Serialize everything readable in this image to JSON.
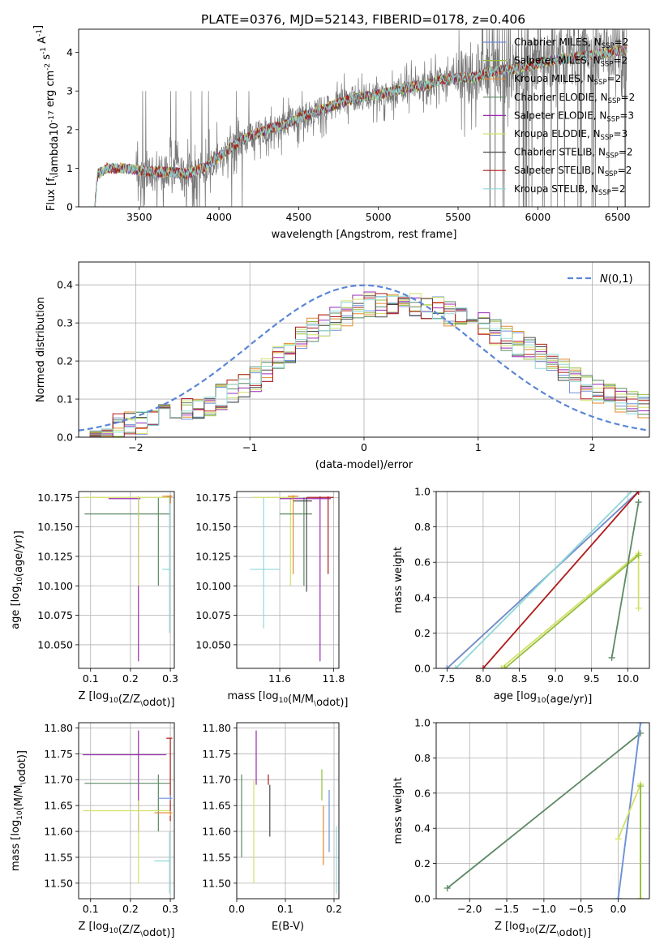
{
  "figure": {
    "title": "PLATE=0376, MJD=52143, FIBERID=0178, z=0.406"
  },
  "colors": {
    "Chabrier MILES": "#6f8fd6",
    "Salpeter MILES": "#93be3a",
    "Kroupa MILES": "#e08a2e",
    "Chabrier ELODIE": "#5c8a64",
    "Salpeter ELODIE": "#9a2ab3",
    "Kroupa ELODIE": "#d4e06a",
    "Chabrier STELIB": "#4a4a4a",
    "Salpeter STELIB": "#b01a1a",
    "Kroupa STELIB": "#8fd8d8",
    "normal": "#5a86d6",
    "data": "#777777"
  },
  "chart_data": [
    {
      "id": "spectrum",
      "type": "line",
      "xlabel": "wavelength [Angstrom, rest frame]",
      "ylabel": "Flux [f$_\\lambda$10$^{-17}$ erg cm$^{-2}$ s$^{-1}$ A$^{-1}$]",
      "xlim": [
        3120,
        6700
      ],
      "ylim": [
        0,
        4.6
      ],
      "xticks": [
        3500,
        4000,
        4500,
        5000,
        5500,
        6000,
        6500
      ],
      "yticks": [
        0,
        1,
        2,
        3,
        4
      ],
      "grid": false,
      "legend": "top-right",
      "legend_entries": [
        {
          "name": "Chabrier MILES",
          "nssp": 2
        },
        {
          "name": "Salpeter MILES",
          "nssp": 2
        },
        {
          "name": "Kroupa MILES",
          "nssp": 2
        },
        {
          "name": "Chabrier ELODIE",
          "nssp": 2
        },
        {
          "name": "Salpeter ELODIE",
          "nssp": 3
        },
        {
          "name": "Kroupa ELODIE",
          "nssp": 3
        },
        {
          "name": "Chabrier STELIB",
          "nssp": 2
        },
        {
          "name": "Salpeter STELIB",
          "nssp": 2
        },
        {
          "name": "Kroupa STELIB",
          "nssp": 2
        }
      ],
      "continuum": {
        "x": [
          3220,
          3240,
          3300,
          3400,
          3500,
          3600,
          3700,
          3800,
          3900,
          4000,
          4100,
          4200,
          4300,
          4400,
          4500,
          4600,
          4700,
          4800,
          4900,
          5000,
          5100,
          5200,
          5300,
          5400,
          5500,
          5600,
          5700,
          5800,
          5900,
          6000,
          6100,
          6200,
          6300,
          6400,
          6500,
          6550
        ],
        "y": [
          0.0,
          0.85,
          1.0,
          1.0,
          0.95,
          0.9,
          0.9,
          0.85,
          1.0,
          1.3,
          1.6,
          1.85,
          2.0,
          2.1,
          2.3,
          2.45,
          2.6,
          2.75,
          2.85,
          2.9,
          3.0,
          3.1,
          3.15,
          3.3,
          3.35,
          3.35,
          3.5,
          3.55,
          3.6,
          3.7,
          3.8,
          3.85,
          3.9,
          3.95,
          4.05,
          4.05
        ]
      }
    },
    {
      "id": "residuals",
      "type": "line",
      "xlabel": "(data-model)/error",
      "ylabel": "Normed distribution",
      "xlim": [
        -2.5,
        2.5
      ],
      "ylim": [
        0,
        0.46
      ],
      "xticks": [
        -2,
        -1,
        0,
        1,
        2
      ],
      "yticks": [
        0.0,
        0.1,
        0.2,
        0.3,
        0.4
      ],
      "grid": true,
      "legend": "top-right",
      "normal_label": "$\\mathcal{N}(0,1)$",
      "hist_envelope": {
        "x": [
          -2.5,
          -2.0,
          -1.5,
          -1.0,
          -0.5,
          0.0,
          0.5,
          1.0,
          1.5,
          2.0,
          2.5
        ],
        "y": [
          0.02,
          0.035,
          0.07,
          0.14,
          0.27,
          0.35,
          0.35,
          0.3,
          0.22,
          0.12,
          0.08
        ]
      }
    },
    {
      "id": "age-vs-Z",
      "type": "scatter",
      "xlabel": "Z [log$_{10}$(Z/Z$_\\odot$)]",
      "ylabel": "age  [log$_{10}$(age/yr)]",
      "xlim": [
        0.07,
        0.31
      ],
      "ylim": [
        10.03,
        10.18
      ],
      "xticks": [
        0.1,
        0.2,
        0.3
      ],
      "yticks": [
        10.05,
        10.075,
        10.1,
        10.125,
        10.15,
        10.175
      ],
      "grid": true,
      "crosses": [
        {
          "series": "Salpeter ELODIE",
          "x": 0.22,
          "y": 10.174,
          "xerr": [
            0.145,
            0.225
          ],
          "yerr": [
            10.036,
            10.176
          ]
        },
        {
          "series": "Chabrier ELODIE",
          "x": 0.27,
          "y": 10.161,
          "xerr": [
            0.085,
            0.3
          ],
          "yerr": [
            10.1,
            10.175
          ]
        },
        {
          "series": "Kroupa ELODIE",
          "x": 0.22,
          "y": 10.175,
          "xerr": [
            0.08,
            0.298
          ],
          "yerr": [
            10.1,
            10.176
          ]
        },
        {
          "series": "Kroupa STELIB",
          "x": 0.298,
          "y": 10.114,
          "xerr": [
            0.28,
            0.3
          ],
          "yerr": [
            10.06,
            10.176
          ]
        },
        {
          "series": "Salpeter STELIB",
          "x": 0.3,
          "y": 10.176,
          "xerr": [
            0.29,
            0.305
          ],
          "yerr": [
            10.17,
            10.177
          ]
        },
        {
          "series": "Kroupa MILES",
          "x": 0.3,
          "y": 10.176,
          "xerr": [
            0.28,
            0.305
          ],
          "yerr": [
            10.17,
            10.177
          ]
        }
      ]
    },
    {
      "id": "age-vs-mass",
      "type": "scatter",
      "xlabel": "mass [log$_{10}$(M/M$_\\odot$)]",
      "ylabel": "",
      "xlim": [
        11.44,
        11.82
      ],
      "ylim": [
        10.03,
        10.18
      ],
      "xticks": [
        11.6,
        11.8
      ],
      "yticks": [
        10.05,
        10.075,
        10.1,
        10.125,
        10.15,
        10.175
      ],
      "grid": true,
      "crosses": [
        {
          "series": "Kroupa STELIB",
          "x": 11.54,
          "y": 10.114,
          "xerr": [
            11.49,
            11.6
          ],
          "yerr": [
            10.064,
            10.175
          ]
        },
        {
          "series": "Kroupa ELODIE",
          "x": 11.64,
          "y": 10.175,
          "xerr": [
            11.5,
            11.66
          ],
          "yerr": [
            10.1,
            10.176
          ]
        },
        {
          "series": "Chabrier ELODIE",
          "x": 11.69,
          "y": 10.161,
          "xerr": [
            11.6,
            11.72
          ],
          "yerr": [
            10.1,
            10.175
          ]
        },
        {
          "series": "Salpeter ELODIE",
          "x": 11.75,
          "y": 10.174,
          "xerr": [
            11.6,
            11.79
          ],
          "yerr": [
            10.036,
            10.176
          ]
        },
        {
          "series": "Salpeter STELIB",
          "x": 11.78,
          "y": 10.175,
          "xerr": [
            11.7,
            11.8
          ],
          "yerr": [
            10.11,
            10.176
          ]
        },
        {
          "series": "Chabrier STELIB",
          "x": 11.7,
          "y": 10.172,
          "xerr": [
            11.65,
            11.72
          ],
          "yerr": [
            10.095,
            10.175
          ]
        },
        {
          "series": "Kroupa MILES",
          "x": 11.65,
          "y": 10.176,
          "xerr": [
            11.63,
            11.67
          ],
          "yerr": [
            10.11,
            10.177
          ]
        }
      ]
    },
    {
      "id": "massweight-vs-age",
      "type": "line",
      "xlabel": "age  [log$_{10}$(age/yr)]",
      "ylabel": "mass weight",
      "xlim": [
        7.35,
        10.3
      ],
      "ylim": [
        0,
        1.0
      ],
      "xticks": [
        7.5,
        8.0,
        8.5,
        9.0,
        9.5,
        10.0
      ],
      "yticks": [
        0.0,
        0.2,
        0.4,
        0.6,
        0.8,
        1.0
      ],
      "grid": true,
      "series": [
        {
          "name": "Kroupa MILES",
          "x": [
            7.5,
            10.15
          ],
          "y": [
            0.0,
            1.0
          ]
        },
        {
          "name": "Chabrier MILES",
          "x": [
            7.5,
            10.15
          ],
          "y": [
            0.0,
            1.0
          ]
        },
        {
          "name": "Kroupa STELIB",
          "x": [
            7.62,
            10.15
          ],
          "y": [
            0.0,
            1.04
          ]
        },
        {
          "name": "Salpeter STELIB",
          "x": [
            8.0,
            10.15
          ],
          "y": [
            0.0,
            1.0
          ]
        },
        {
          "name": "Kroupa ELODIE",
          "x": [
            8.25,
            10.15,
            10.15
          ],
          "y": [
            0.0,
            0.65,
            0.34
          ]
        },
        {
          "name": "Salpeter MILES",
          "x": [
            8.3,
            10.15
          ],
          "y": [
            0.0,
            0.64
          ]
        },
        {
          "name": "Chabrier ELODIE",
          "x": [
            9.78,
            10.15
          ],
          "y": [
            0.06,
            0.94
          ]
        }
      ]
    },
    {
      "id": "mass-vs-Z",
      "type": "scatter",
      "xlabel": "Z [log$_{10}$(Z/Z$_\\odot$)]",
      "ylabel": "mass [log$_{10}$(M/M$_\\odot$)]",
      "xlim": [
        0.07,
        0.31
      ],
      "ylim": [
        11.47,
        11.81
      ],
      "xticks": [
        0.1,
        0.2,
        0.3
      ],
      "yticks": [
        11.5,
        11.55,
        11.6,
        11.65,
        11.7,
        11.75,
        11.8
      ],
      "grid": true,
      "crosses": [
        {
          "series": "Salpeter ELODIE",
          "x": 0.22,
          "y": 11.748,
          "xerr": [
            0.08,
            0.29
          ],
          "yerr": [
            11.6,
            11.795
          ]
        },
        {
          "series": "Chabrier ELODIE",
          "x": 0.27,
          "y": 11.693,
          "xerr": [
            0.085,
            0.3
          ],
          "yerr": [
            11.6,
            11.71
          ]
        },
        {
          "series": "Kroupa ELODIE",
          "x": 0.22,
          "y": 11.64,
          "xerr": [
            0.08,
            0.3
          ],
          "yerr": [
            11.5,
            11.66
          ]
        },
        {
          "series": "Kroupa STELIB",
          "x": 0.298,
          "y": 11.543,
          "xerr": [
            0.26,
            0.3
          ],
          "yerr": [
            11.48,
            11.6
          ]
        },
        {
          "series": "Salpeter STELIB",
          "x": 0.3,
          "y": 11.78,
          "xerr": [
            0.29,
            0.305
          ],
          "yerr": [
            11.62,
            11.78
          ]
        },
        {
          "series": "Kroupa MILES",
          "x": 0.3,
          "y": 11.636,
          "xerr": [
            0.26,
            0.305
          ],
          "yerr": [
            11.63,
            11.64
          ]
        },
        {
          "series": "Chabrier MILES",
          "x": 0.3,
          "y": 11.664,
          "xerr": [
            0.27,
            0.305
          ],
          "yerr": [
            11.66,
            11.67
          ]
        }
      ]
    },
    {
      "id": "mass-vs-EBV",
      "type": "scatter",
      "xlabel": "E(B-V)",
      "ylabel": "",
      "xlim": [
        0.0,
        0.21
      ],
      "ylim": [
        11.47,
        11.81
      ],
      "xticks": [
        0.0,
        0.1,
        0.2
      ],
      "yticks": [
        11.5,
        11.55,
        11.6,
        11.65,
        11.7,
        11.75,
        11.8
      ],
      "grid": true,
      "crosses": [
        {
          "series": "Chabrier ELODIE",
          "x": 0.01,
          "y": 11.63,
          "xerr": [
            0.01,
            0.01
          ],
          "yerr": [
            11.55,
            11.71
          ]
        },
        {
          "series": "Kroupa ELODIE",
          "x": 0.035,
          "y": 11.6,
          "xerr": [
            0.035,
            0.035
          ],
          "yerr": [
            11.5,
            11.7
          ]
        },
        {
          "series": "Salpeter ELODIE",
          "x": 0.04,
          "y": 11.74,
          "xerr": [
            0.04,
            0.04
          ],
          "yerr": [
            11.69,
            11.795
          ]
        },
        {
          "series": "Salpeter STELIB",
          "x": 0.065,
          "y": 11.7,
          "xerr": [
            0.065,
            0.065
          ],
          "yerr": [
            11.69,
            11.71
          ]
        },
        {
          "series": "Chabrier STELIB",
          "x": 0.068,
          "y": 11.64,
          "xerr": [
            0.068,
            0.068
          ],
          "yerr": [
            11.59,
            11.69
          ]
        },
        {
          "series": "Kroupa MILES",
          "x": 0.178,
          "y": 11.59,
          "xerr": [
            0.178,
            0.178
          ],
          "yerr": [
            11.535,
            11.65
          ]
        },
        {
          "series": "Chabrier MILES",
          "x": 0.19,
          "y": 11.62,
          "xerr": [
            0.19,
            0.19
          ],
          "yerr": [
            11.56,
            11.68
          ]
        },
        {
          "series": "Kroupa STELIB",
          "x": 0.205,
          "y": 11.55,
          "xerr": [
            0.205,
            0.205
          ],
          "yerr": [
            11.48,
            11.61
          ]
        },
        {
          "series": "Salpeter MILES",
          "x": 0.175,
          "y": 11.68,
          "xerr": [
            0.175,
            0.175
          ],
          "yerr": [
            11.66,
            11.72
          ]
        }
      ]
    },
    {
      "id": "massweight-vs-Z",
      "type": "line",
      "xlabel": "Z [log$_{10}$(Z/Z$_\\odot$)]",
      "ylabel": "mass weight",
      "xlim": [
        -2.45,
        0.42
      ],
      "ylim": [
        0,
        1.0
      ],
      "xticks": [
        -2.0,
        -1.5,
        -1.0,
        -0.5,
        0.0
      ],
      "yticks": [
        0.0,
        0.2,
        0.4,
        0.6,
        0.8,
        1.0
      ],
      "grid": true,
      "series": [
        {
          "name": "Chabrier ELODIE",
          "x": [
            -2.3,
            0.3
          ],
          "y": [
            0.06,
            0.94
          ]
        },
        {
          "name": "Kroupa STELIB",
          "x": [
            0.0,
            0.3
          ],
          "y": [
            0.0,
            1.0
          ]
        },
        {
          "name": "Chabrier MILES",
          "x": [
            0.0,
            0.3
          ],
          "y": [
            0.0,
            1.0
          ]
        },
        {
          "name": "Kroupa ELODIE",
          "x": [
            0.0,
            0.3,
            0.3
          ],
          "y": [
            0.34,
            0.65,
            0.0
          ]
        },
        {
          "name": "Salpeter MILES",
          "x": [
            0.3,
            0.3
          ],
          "y": [
            0.64,
            0.0
          ]
        }
      ]
    }
  ]
}
